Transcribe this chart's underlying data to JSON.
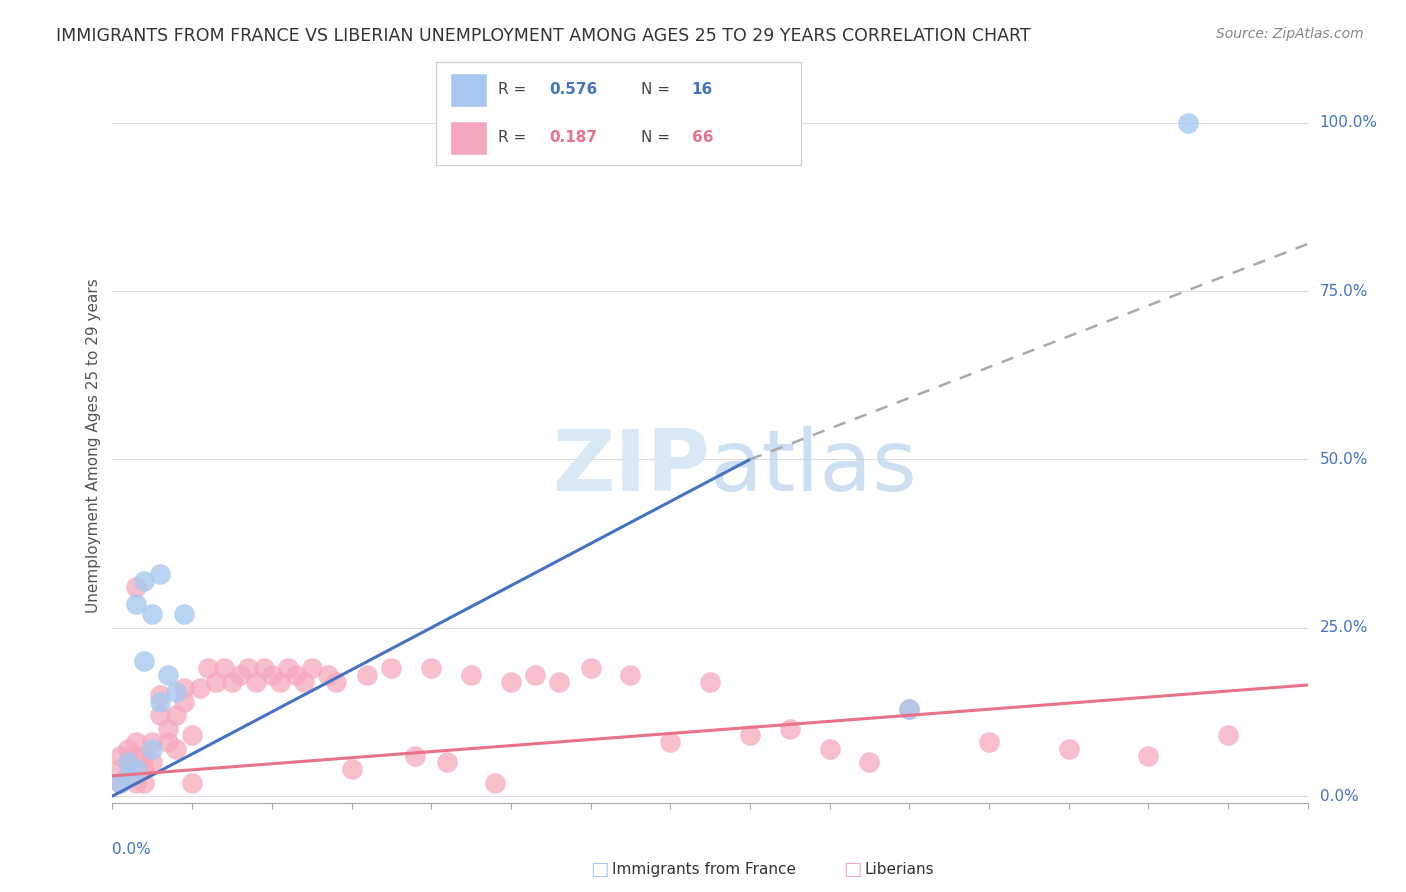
{
  "title": "IMMIGRANTS FROM FRANCE VS LIBERIAN UNEMPLOYMENT AMONG AGES 25 TO 29 YEARS CORRELATION CHART",
  "source": "Source: ZipAtlas.com",
  "ylabel": "Unemployment Among Ages 25 to 29 years",
  "legend_blue_r": "0.576",
  "legend_blue_n": "16",
  "legend_pink_r": "0.187",
  "legend_pink_n": "66",
  "blue_scatter_color": "#A8C8F0",
  "pink_scatter_color": "#F5A8BC",
  "trend_blue_color": "#4472C4",
  "trend_pink_color": "#E8728A",
  "trend_dashed_color": "#AAAAAA",
  "text_blue_color": "#4472C4",
  "text_pink_color": "#E8728A",
  "watermark_color": "#D8E8F5",
  "grid_color": "#DDDDDD",
  "blue_x": [
    0.001,
    0.002,
    0.002,
    0.003,
    0.003,
    0.004,
    0.004,
    0.005,
    0.005,
    0.006,
    0.006,
    0.007,
    0.008,
    0.009,
    0.1,
    0.135
  ],
  "blue_y": [
    0.02,
    0.03,
    0.05,
    0.04,
    0.285,
    0.2,
    0.32,
    0.27,
    0.07,
    0.33,
    0.14,
    0.18,
    0.155,
    0.27,
    0.13,
    1.0
  ],
  "pink_x": [
    0.001,
    0.001,
    0.001,
    0.002,
    0.002,
    0.002,
    0.003,
    0.003,
    0.003,
    0.004,
    0.004,
    0.004,
    0.005,
    0.005,
    0.006,
    0.006,
    0.007,
    0.007,
    0.008,
    0.008,
    0.009,
    0.009,
    0.01,
    0.01,
    0.011,
    0.012,
    0.013,
    0.014,
    0.015,
    0.016,
    0.017,
    0.018,
    0.019,
    0.02,
    0.021,
    0.022,
    0.023,
    0.024,
    0.025,
    0.027,
    0.028,
    0.03,
    0.032,
    0.035,
    0.038,
    0.04,
    0.042,
    0.045,
    0.048,
    0.05,
    0.053,
    0.056,
    0.06,
    0.065,
    0.07,
    0.075,
    0.08,
    0.085,
    0.09,
    0.095,
    0.1,
    0.11,
    0.12,
    0.13,
    0.14,
    0.003
  ],
  "pink_y": [
    0.02,
    0.04,
    0.06,
    0.03,
    0.05,
    0.07,
    0.02,
    0.06,
    0.08,
    0.04,
    0.06,
    0.02,
    0.05,
    0.08,
    0.12,
    0.15,
    0.1,
    0.08,
    0.12,
    0.07,
    0.14,
    0.16,
    0.02,
    0.09,
    0.16,
    0.19,
    0.17,
    0.19,
    0.17,
    0.18,
    0.19,
    0.17,
    0.19,
    0.18,
    0.17,
    0.19,
    0.18,
    0.17,
    0.19,
    0.18,
    0.17,
    0.04,
    0.18,
    0.19,
    0.06,
    0.19,
    0.05,
    0.18,
    0.02,
    0.17,
    0.18,
    0.17,
    0.19,
    0.18,
    0.08,
    0.17,
    0.09,
    0.1,
    0.07,
    0.05,
    0.13,
    0.08,
    0.07,
    0.06,
    0.09,
    0.31
  ],
  "blue_line_x0": 0.0,
  "blue_line_y0": 0.0,
  "blue_line_x1": 0.08,
  "blue_line_y1": 0.5,
  "dashed_line_x0": 0.08,
  "dashed_line_y0": 0.5,
  "dashed_line_x1": 0.15,
  "dashed_line_y1": 0.82,
  "pink_line_x0": 0.0,
  "pink_line_y0": 0.03,
  "pink_line_x1": 0.15,
  "pink_line_y1": 0.165,
  "xlim_min": 0.0,
  "xlim_max": 0.15,
  "ylim_min": -0.01,
  "ylim_max": 1.05,
  "right_ytick_vals": [
    0.0,
    0.25,
    0.5,
    0.75,
    1.0
  ],
  "right_ytick_labels": [
    "0.0%",
    "25.0%",
    "50.0%",
    "75.0%",
    "100.0%"
  ]
}
